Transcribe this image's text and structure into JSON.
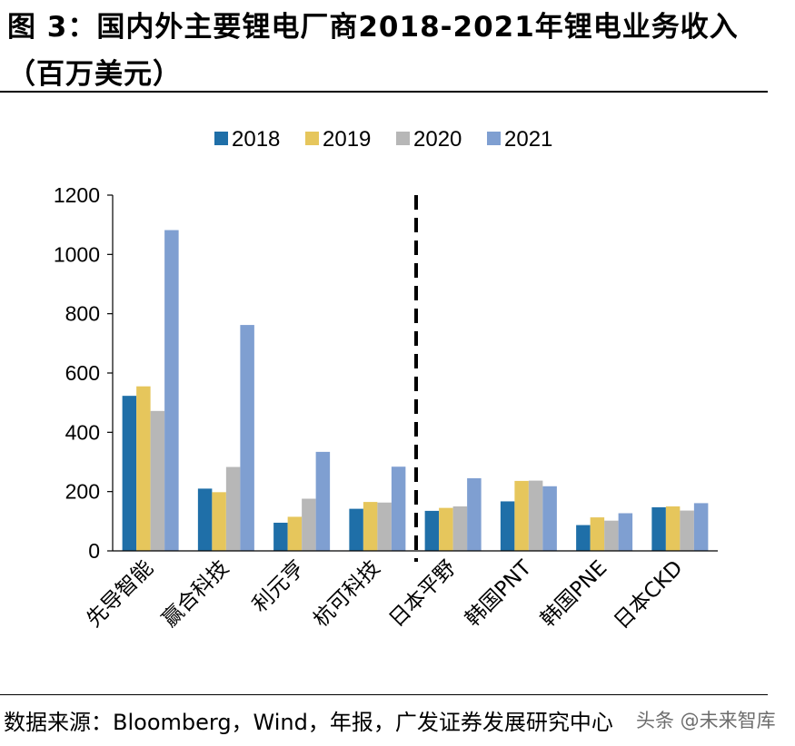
{
  "title": "图 3：国内外主要锂电厂商2018-2021年锂电业务收入（百万美元）",
  "source": "数据来源：Bloomberg，Wind，年报，广发证券发展研究中心",
  "watermark": "头条 @未来智库",
  "chart_data": {
    "type": "bar",
    "categories": [
      "先导智能",
      "赢合科技",
      "利元亨",
      "杭可科技",
      "日本平野",
      "韩国PNT",
      "韩国PNE",
      "日本CKD"
    ],
    "series": [
      {
        "name": "2018",
        "color": "#1f6fa8",
        "values": [
          523,
          210,
          95,
          142,
          135,
          167,
          87,
          147
        ]
      },
      {
        "name": "2019",
        "color": "#e6c65c",
        "values": [
          555,
          198,
          115,
          165,
          145,
          236,
          113,
          150
        ]
      },
      {
        "name": "2020",
        "color": "#b7b7b7",
        "values": [
          472,
          283,
          176,
          163,
          150,
          237,
          102,
          136
        ]
      },
      {
        "name": "2021",
        "color": "#7f9fd1",
        "values": [
          1082,
          762,
          334,
          284,
          245,
          218,
          127,
          161
        ]
      }
    ],
    "ylim": [
      0,
      1200
    ],
    "yticks": [
      "0",
      "200",
      "400",
      "600",
      "800",
      "1000",
      "1200"
    ],
    "legend_position": "top-center",
    "grid": false,
    "annotation": "dashed vertical separator between domestic and foreign makers"
  }
}
